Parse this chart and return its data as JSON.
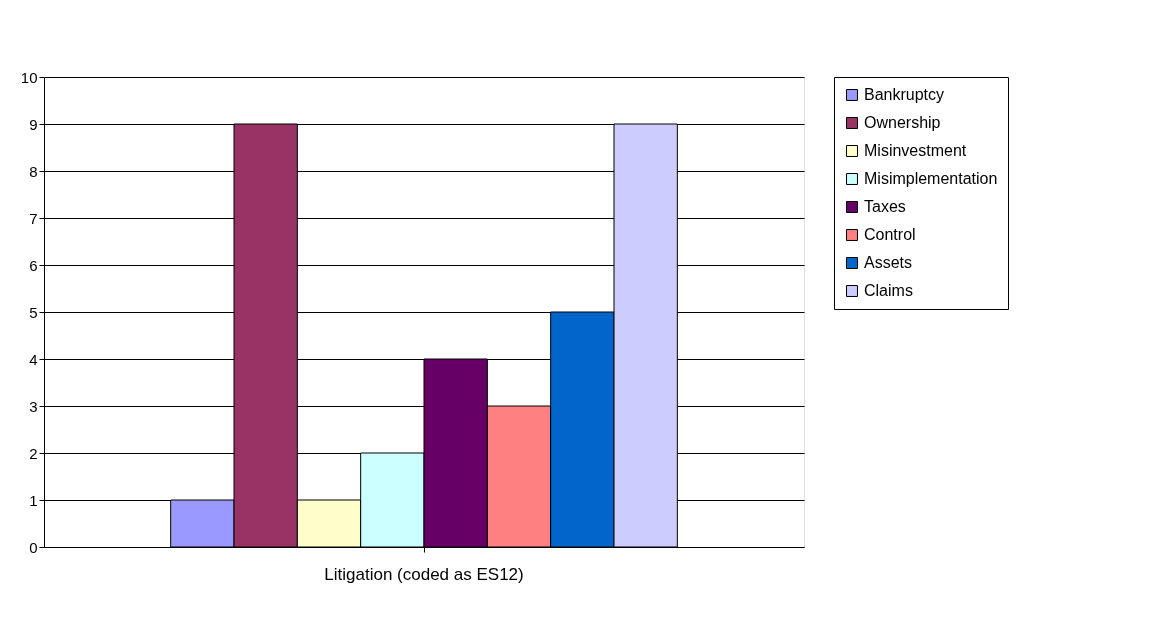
{
  "chart_data": {
    "type": "bar",
    "categories": [
      "Litigation (coded as ES12)"
    ],
    "series": [
      {
        "name": "Bankruptcy",
        "color": "#9999ff",
        "values": [
          1
        ]
      },
      {
        "name": "Ownership",
        "color": "#993366",
        "values": [
          9
        ]
      },
      {
        "name": "Misinvestment",
        "color": "#ffffcc",
        "values": [
          1
        ]
      },
      {
        "name": "Misimplementation",
        "color": "#ccffff",
        "values": [
          2
        ]
      },
      {
        "name": "Taxes",
        "color": "#660066",
        "values": [
          4
        ]
      },
      {
        "name": "Control",
        "color": "#ff8080",
        "values": [
          3
        ]
      },
      {
        "name": "Assets",
        "color": "#0066cc",
        "values": [
          5
        ]
      },
      {
        "name": "Claims",
        "color": "#ccccff",
        "values": [
          9
        ]
      }
    ],
    "ylim": [
      0,
      10
    ],
    "yticks": [
      0,
      1,
      2,
      3,
      4,
      5,
      6,
      7,
      8,
      9,
      10
    ],
    "grid": "y",
    "legend": "right"
  }
}
